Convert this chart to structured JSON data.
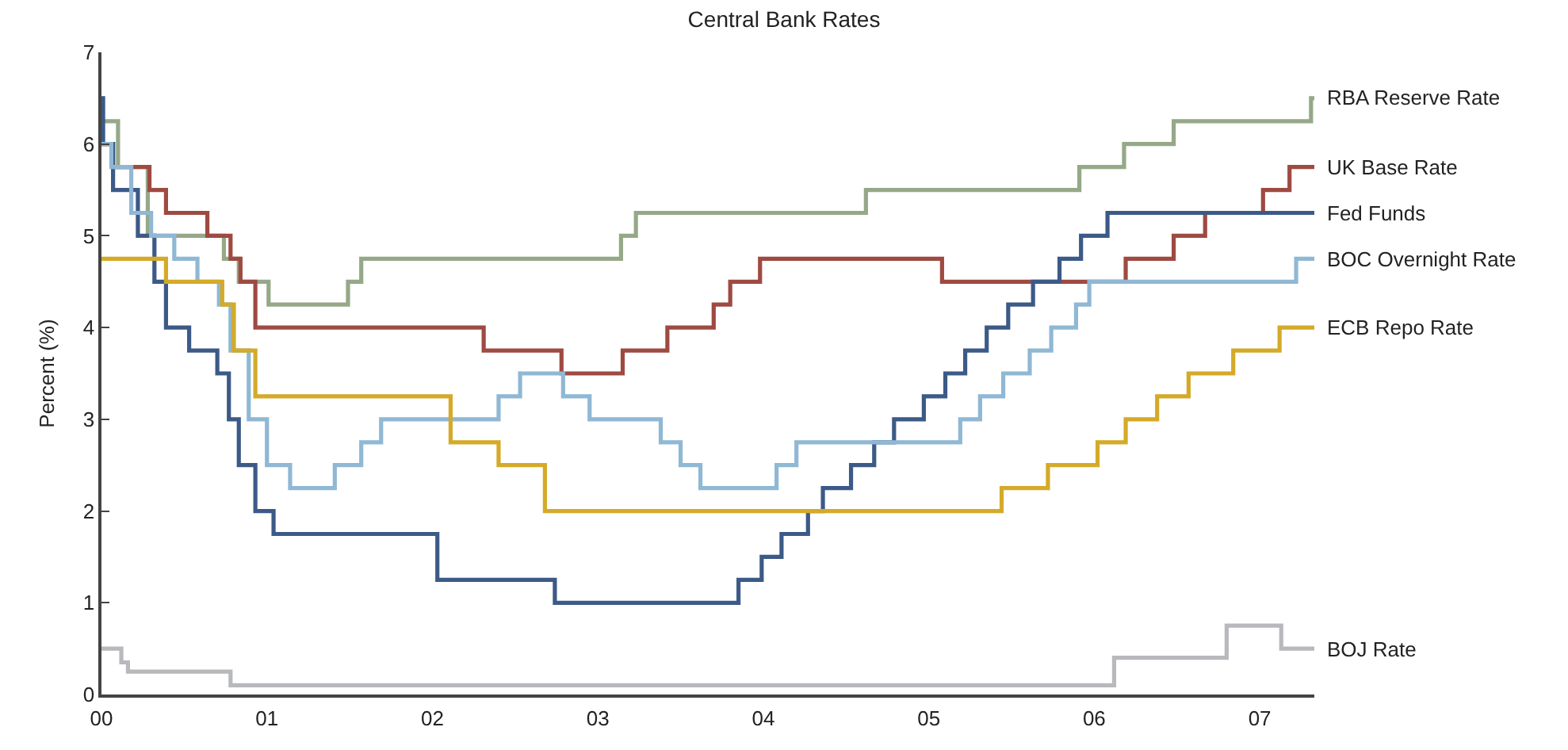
{
  "chart_data": {
    "type": "step",
    "title": "Central Bank Rates",
    "ylabel": "Percent (%)",
    "xlim": [
      2000,
      2007.33
    ],
    "xticks": [
      {
        "value": 2000,
        "label": "00"
      },
      {
        "value": 2001,
        "label": "01"
      },
      {
        "value": 2002,
        "label": "02"
      },
      {
        "value": 2003,
        "label": "03"
      },
      {
        "value": 2004,
        "label": "04"
      },
      {
        "value": 2005,
        "label": "05"
      },
      {
        "value": 2006,
        "label": "06"
      },
      {
        "value": 2007,
        "label": "07"
      }
    ],
    "ylim": [
      0,
      7
    ],
    "yticks": [
      0,
      1,
      2,
      3,
      4,
      5,
      6,
      7
    ],
    "legend": false,
    "marker": "none",
    "line_style": "solid",
    "series": [
      {
        "name": "RBA Reserve Rate",
        "color": "#95a888",
        "x": [
          2000.0,
          2000.1,
          2000.28,
          2000.74,
          2000.83,
          2001.01,
          2001.49,
          2001.57,
          2003.14,
          2003.23,
          2004.62,
          2005.91,
          2006.18,
          2006.48,
          2007.31,
          2007.33
        ],
        "values": [
          6.25,
          5.75,
          5.0,
          4.75,
          4.5,
          4.25,
          4.5,
          4.75,
          5.0,
          5.25,
          5.5,
          5.75,
          6.0,
          6.25,
          6.5,
          6.5
        ]
      },
      {
        "name": "UK Base Rate",
        "color": "#9e4a42",
        "x": [
          2000.0,
          2000.07,
          2000.29,
          2000.39,
          2000.64,
          2000.78,
          2000.84,
          2000.93,
          2002.31,
          2002.78,
          2003.15,
          2003.42,
          2003.7,
          2003.8,
          2003.98,
          2005.08,
          2006.19,
          2006.48,
          2006.67,
          2007.02,
          2007.18,
          2007.33
        ],
        "values": [
          6.0,
          5.75,
          5.5,
          5.25,
          5.0,
          4.75,
          4.5,
          4.0,
          3.75,
          3.5,
          3.75,
          4.0,
          4.25,
          4.5,
          4.75,
          4.5,
          4.75,
          5.0,
          5.25,
          5.5,
          5.75,
          5.75
        ]
      },
      {
        "name": "Fed Funds",
        "color": "#3c5a87",
        "x": [
          2000.0,
          2000.01,
          2000.07,
          2000.22,
          2000.32,
          2000.39,
          2000.53,
          2000.7,
          2000.77,
          2000.83,
          2000.93,
          2001.04,
          2002.03,
          2002.74,
          2003.85,
          2003.99,
          2004.11,
          2004.27,
          2004.36,
          2004.53,
          2004.67,
          2004.79,
          2004.97,
          2005.1,
          2005.22,
          2005.35,
          2005.48,
          2005.63,
          2005.79,
          2005.92,
          2006.08,
          2007.33
        ],
        "values": [
          6.5,
          6.0,
          5.5,
          5.0,
          4.5,
          4.0,
          3.75,
          3.5,
          3.0,
          2.5,
          2.0,
          1.75,
          1.25,
          1.0,
          1.25,
          1.5,
          1.75,
          2.0,
          2.25,
          2.5,
          2.75,
          3.0,
          3.25,
          3.5,
          3.75,
          4.0,
          4.25,
          4.5,
          4.75,
          5.0,
          5.25,
          5.25
        ]
      },
      {
        "name": "BOC Overnight Rate",
        "color": "#8fb8d4",
        "x": [
          2000.0,
          2000.06,
          2000.18,
          2000.3,
          2000.44,
          2000.58,
          2000.71,
          2000.78,
          2000.89,
          2001.0,
          2001.14,
          2001.41,
          2001.57,
          2001.69,
          2002.4,
          2002.53,
          2002.79,
          2002.95,
          2003.38,
          2003.5,
          2003.62,
          2004.08,
          2004.2,
          2005.19,
          2005.31,
          2005.45,
          2005.61,
          2005.74,
          2005.89,
          2005.97,
          2007.22,
          2007.33
        ],
        "values": [
          6.0,
          5.75,
          5.25,
          5.0,
          4.75,
          4.5,
          4.25,
          3.75,
          3.0,
          2.5,
          2.25,
          2.5,
          2.75,
          3.0,
          3.25,
          3.5,
          3.25,
          3.0,
          2.75,
          2.5,
          2.25,
          2.5,
          2.75,
          3.0,
          3.25,
          3.5,
          3.75,
          4.0,
          4.25,
          4.5,
          4.75,
          4.75
        ]
      },
      {
        "name": "ECB Repo Rate",
        "color": "#d4aa28",
        "x": [
          2000.0,
          2000.39,
          2000.73,
          2000.8,
          2000.93,
          2002.11,
          2002.4,
          2002.68,
          2005.44,
          2005.72,
          2006.02,
          2006.19,
          2006.38,
          2006.57,
          2006.84,
          2007.12,
          2007.33
        ],
        "values": [
          4.75,
          4.5,
          4.25,
          3.75,
          3.25,
          2.75,
          2.5,
          2.0,
          2.25,
          2.5,
          2.75,
          3.0,
          3.25,
          3.5,
          3.75,
          4.0,
          4.0
        ]
      },
      {
        "name": "BOJ Rate",
        "color": "#b8b9bc",
        "x": [
          2000.0,
          2000.12,
          2000.16,
          2000.78,
          2006.12,
          2006.8,
          2007.13,
          2007.33
        ],
        "values": [
          0.5,
          0.35,
          0.25,
          0.1,
          0.4,
          0.75,
          0.5,
          0.5
        ]
      }
    ]
  }
}
